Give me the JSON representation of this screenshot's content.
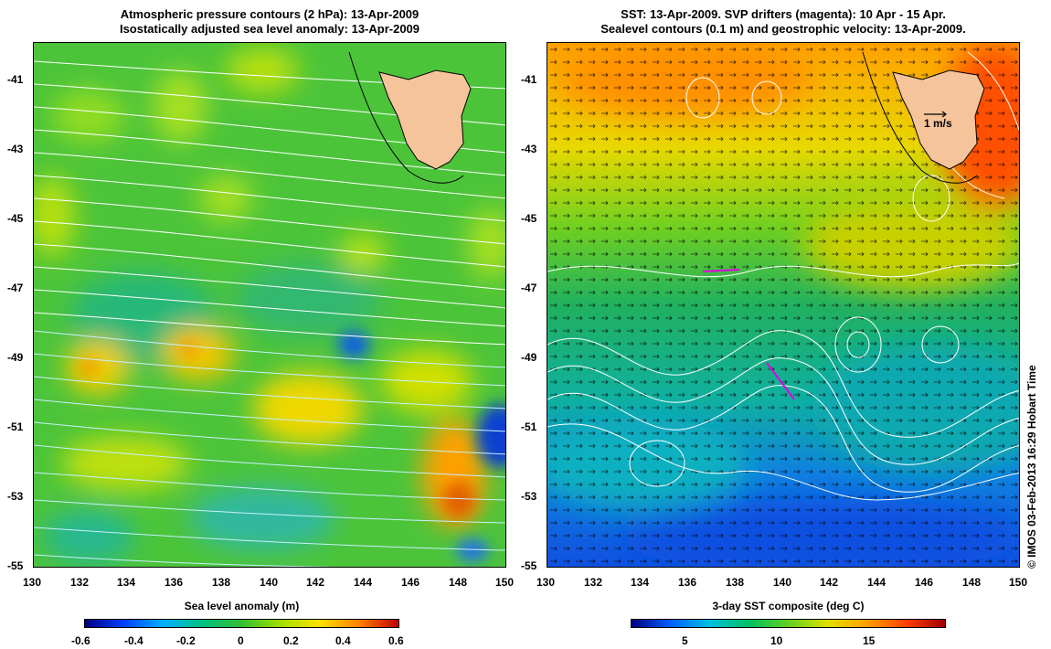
{
  "left": {
    "title_line1": "Atmospheric pressure contours (2 hPa): 13-Apr-2009",
    "title_line2": "Isostatically adjusted sea level anomaly: 13-Apr-2009",
    "colorbar_label": "Sea level anomaly (m)",
    "colorbar_ticks": [
      "-0.6",
      "-0.4",
      "-0.2",
      "0",
      "0.2",
      "0.4",
      "0.6"
    ]
  },
  "right": {
    "title_line1": "SST: 13-Apr-2009. SVP drifters (magenta): 10 Apr - 15 Apr.",
    "title_line2": "Sealevel contours (0.1 m) and geostrophic velocity: 13-Apr-2009.",
    "colorbar_label": "3-day SST composite (deg C)",
    "colorbar_ticks": [
      "5",
      "10",
      "15"
    ],
    "velocity_scale_label": "1 m/s"
  },
  "lat_ticks": [
    "-41",
    "-43",
    "-45",
    "-47",
    "-49",
    "-51",
    "-53",
    "-55"
  ],
  "lon_ticks": [
    "130",
    "132",
    "134",
    "136",
    "138",
    "140",
    "142",
    "144",
    "146",
    "148",
    "150"
  ],
  "credit": "© IMOS 03-Feb-2013 16:29 Hobart Time",
  "colors": {
    "land": "#f6c49a",
    "sla_scale": [
      "#00007f",
      "#0040ff",
      "#00b0ff",
      "#00c080",
      "#30c030",
      "#a0e000",
      "#ffe000",
      "#ff8000",
      "#c00000"
    ],
    "sst_scale": [
      "#00007f",
      "#0060ff",
      "#00c0e0",
      "#00c060",
      "#60d020",
      "#e0e000",
      "#ffa000",
      "#ff4000",
      "#a00000"
    ]
  }
}
